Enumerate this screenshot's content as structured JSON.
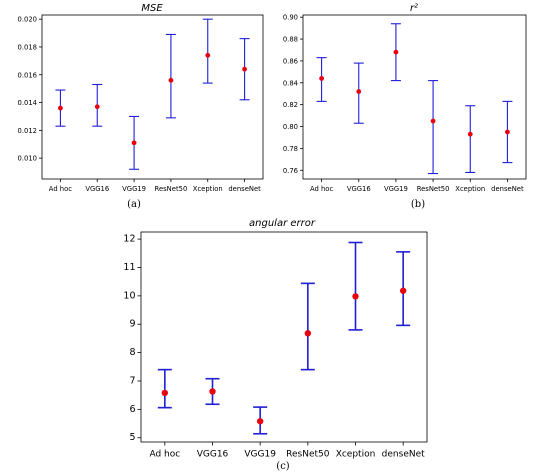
{
  "chart_data": [
    {
      "id": "a",
      "type": "scatter",
      "title": "MSE",
      "caption": "(a)",
      "categories": [
        "Ad hoc",
        "VGG16",
        "VGG19",
        "ResNet50",
        "Xception",
        "denseNet"
      ],
      "values": [
        0.0136,
        0.0137,
        0.0111,
        0.0156,
        0.0174,
        0.0164
      ],
      "lower": [
        0.0123,
        0.0123,
        0.0092,
        0.0129,
        0.0154,
        0.0142
      ],
      "upper": [
        0.0149,
        0.0153,
        0.013,
        0.0189,
        0.02,
        0.0186
      ],
      "ylim": [
        0.0085,
        0.0203
      ],
      "yticks": [
        0.01,
        0.012,
        0.014,
        0.016,
        0.018,
        0.02
      ],
      "ytick_labels": [
        "0.010",
        "0.012",
        "0.014",
        "0.016",
        "0.018",
        "0.020"
      ],
      "grid": false,
      "colors": {
        "marker": "#e8000b",
        "errorbar": "#1f1fd6"
      }
    },
    {
      "id": "b",
      "type": "scatter",
      "title": "r²",
      "caption": "(b)",
      "categories": [
        "Ad hoc",
        "VGG16",
        "VGG19",
        "ResNet50",
        "Xception",
        "denseNet"
      ],
      "values": [
        0.844,
        0.832,
        0.868,
        0.805,
        0.793,
        0.795
      ],
      "lower": [
        0.823,
        0.803,
        0.842,
        0.757,
        0.758,
        0.767
      ],
      "upper": [
        0.863,
        0.858,
        0.894,
        0.842,
        0.819,
        0.823
      ],
      "ylim": [
        0.752,
        0.902
      ],
      "yticks": [
        0.76,
        0.78,
        0.8,
        0.82,
        0.84,
        0.86,
        0.88,
        0.9
      ],
      "ytick_labels": [
        "0.76",
        "0.78",
        "0.80",
        "0.82",
        "0.84",
        "0.86",
        "0.88",
        "0.90"
      ],
      "grid": false,
      "colors": {
        "marker": "#e8000b",
        "errorbar": "#1f1fd6"
      }
    },
    {
      "id": "c",
      "type": "scatter",
      "title": "angular error",
      "caption": "(c)",
      "categories": [
        "Ad hoc",
        "VGG16",
        "VGG19",
        "ResNet50",
        "Xception",
        "denseNet"
      ],
      "values": [
        6.58,
        6.63,
        5.58,
        8.68,
        9.98,
        10.18
      ],
      "lower": [
        6.06,
        6.18,
        5.14,
        7.4,
        8.8,
        8.96
      ],
      "upper": [
        7.4,
        7.08,
        6.08,
        10.44,
        11.88,
        11.55
      ],
      "ylim": [
        4.85,
        12.25
      ],
      "yticks": [
        5,
        6,
        7,
        8,
        9,
        10,
        11,
        12
      ],
      "ytick_labels": [
        "5",
        "6",
        "7",
        "8",
        "9",
        "10",
        "11",
        "12"
      ],
      "grid": false,
      "colors": {
        "marker": "#e8000b",
        "errorbar": "#1f1fd6"
      }
    }
  ]
}
